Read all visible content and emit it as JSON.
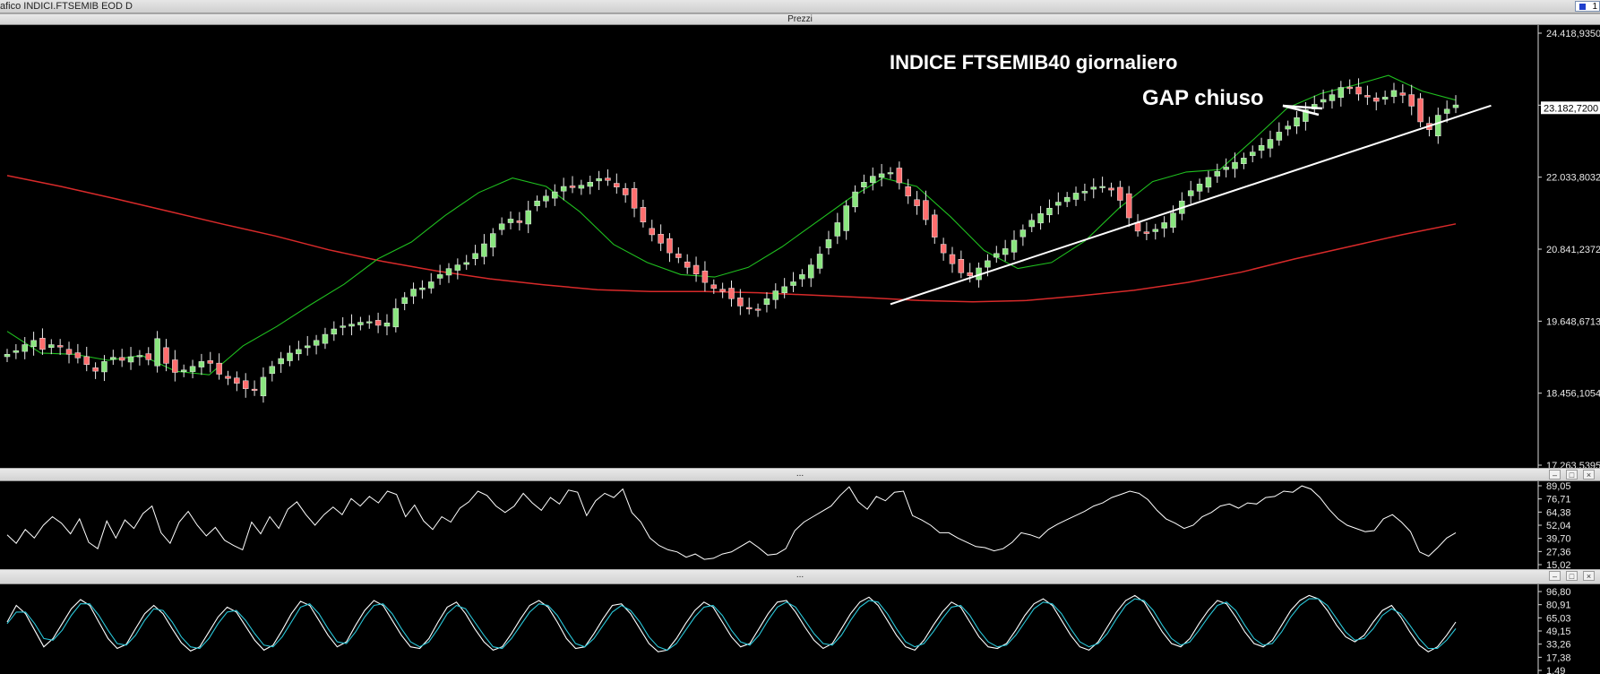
{
  "window": {
    "title": "afico INDICI.FTSEMIB EOD D",
    "badge": "1",
    "pane_main_label": "Prezzi",
    "pane_osc_label": "..."
  },
  "annotations": {
    "title": "INDICE FTSEMIB40 giornaliero",
    "gap": "GAP chiuso"
  },
  "colors": {
    "background": "#000000",
    "bull_candle": "#8ae67f",
    "bear_candle": "#ff6e6e",
    "ma_short": "#1fbf1f",
    "ma_long": "#d82a2a",
    "trendline": "#ffffff",
    "oscillator": "#ffffff",
    "stoch_k": "#ffffff",
    "stoch_d": "#29c6d8"
  },
  "chart_data": [
    {
      "type": "candlestick",
      "title": "INDICE FTSEMIB40 giornaliero",
      "y_ticks": [
        "24.418,9350",
        "23.182,7200",
        "22.033,8032",
        "20.841,2372",
        "19.648,6713",
        "18.456,1054",
        "17.263,5395"
      ],
      "ylim": [
        17263.5395,
        24418.935
      ],
      "current_value": "23.182,7200",
      "trendline": {
        "from": [
          100,
          19930
        ],
        "to": [
          168,
          23220
        ]
      },
      "ma_long_values": [
        22060,
        21880,
        21680,
        21470,
        21260,
        21060,
        20830,
        20640,
        20480,
        20350,
        20250,
        20170,
        20140,
        20140,
        20120,
        20080,
        20040,
        19990,
        19970,
        19990,
        20070,
        20160,
        20290,
        20460,
        20680,
        20880,
        21080,
        21260
      ],
      "ma_short_values": [
        19480,
        19120,
        19100,
        19000,
        19080,
        18820,
        18760,
        19240,
        19560,
        19920,
        20260,
        20680,
        20960,
        21400,
        21780,
        22020,
        21880,
        21460,
        20920,
        20620,
        20420,
        20380,
        20540,
        20880,
        21280,
        21680,
        22020,
        21880,
        21380,
        20820,
        20520,
        20620,
        20980,
        21520,
        21960,
        22120,
        22160,
        22660,
        23180,
        23420,
        23560,
        23720,
        23460,
        23310
      ],
      "closes": [
        19100,
        19160,
        19260,
        19330,
        19180,
        19260,
        19220,
        19100,
        19040,
        18930,
        18820,
        18980,
        19050,
        19000,
        19060,
        19080,
        19010,
        19360,
        18950,
        18800,
        18840,
        18900,
        18980,
        18950,
        18770,
        18700,
        18620,
        18530,
        18500,
        18720,
        18900,
        19030,
        19120,
        19180,
        19240,
        19330,
        19430,
        19520,
        19570,
        19600,
        19630,
        19640,
        19580,
        19620,
        19860,
        20040,
        20180,
        20200,
        20300,
        20420,
        20520,
        20580,
        20620,
        20770,
        20930,
        21100,
        21260,
        21340,
        21280,
        21480,
        21640,
        21720,
        21790,
        21880,
        21860,
        21900,
        21950,
        22010,
        21980,
        21870,
        21740,
        21520,
        21290,
        21080,
        20940,
        20780,
        20700,
        20540,
        20430,
        20290,
        20190,
        20140,
        20020,
        19900,
        19850,
        19830,
        20020,
        20150,
        20220,
        20300,
        20420,
        20580,
        20760,
        21000,
        21280,
        21560,
        21790,
        21950,
        22050,
        22090,
        22110,
        21940,
        21720,
        21560,
        21330,
        21040,
        20780,
        20600,
        20450,
        20400,
        20530,
        20650,
        20770,
        20850,
        20990,
        21160,
        21320,
        21430,
        21520,
        21620,
        21700,
        21770,
        21800,
        21870,
        21880,
        21820,
        21650,
        21360,
        21140,
        21100,
        21170,
        21280,
        21440,
        21640,
        21810,
        21920,
        22030,
        22130,
        22200,
        22280,
        22350,
        22450,
        22560,
        22660,
        22780,
        22880,
        23020,
        23150,
        23240,
        23320,
        23400,
        23520,
        23500,
        23410,
        23360,
        23290,
        23360,
        23470,
        23390,
        23210,
        22950,
        22820,
        23060,
        23160,
        23230
      ]
    },
    {
      "type": "line",
      "name": "",
      "y_ticks": [
        "89,05",
        "76,71",
        "64,38",
        "52,04",
        "39,70",
        "27,36",
        "15,02"
      ],
      "ylim": [
        15.02,
        89.05
      ],
      "values": [
        43,
        35,
        48,
        40,
        52,
        60,
        54,
        44,
        58,
        36,
        30,
        56,
        40,
        57,
        49,
        63,
        70,
        45,
        35,
        55,
        65,
        52,
        42,
        50,
        38,
        33,
        29,
        55,
        44,
        60,
        49,
        67,
        74,
        62,
        52,
        62,
        69,
        62,
        77,
        70,
        79,
        73,
        84,
        81,
        60,
        71,
        56,
        48,
        60,
        55,
        68,
        74,
        84,
        80,
        70,
        64,
        70,
        82,
        73,
        66,
        78,
        72,
        85,
        83,
        61,
        75,
        82,
        78,
        86,
        64,
        55,
        40,
        33,
        29,
        27,
        22,
        25,
        20,
        21,
        25,
        27,
        32,
        37,
        31,
        24,
        25,
        30,
        47,
        55,
        60,
        65,
        70,
        80,
        88,
        74,
        67,
        79,
        75,
        83,
        84,
        61,
        57,
        52,
        45,
        45,
        40,
        36,
        32,
        31,
        28,
        30,
        36,
        45,
        43,
        40,
        48,
        53,
        57,
        61,
        65,
        70,
        73,
        78,
        81,
        84,
        82,
        76,
        66,
        58,
        54,
        49,
        52,
        60,
        64,
        70,
        72,
        68,
        73,
        72,
        78,
        79,
        84,
        83,
        89,
        86,
        78,
        67,
        58,
        52,
        49,
        46,
        47,
        58,
        62,
        55,
        46,
        27,
        23,
        31,
        40,
        45
      ]
    },
    {
      "type": "line",
      "name": "",
      "y_ticks": [
        "96,80",
        "80,91",
        "65,03",
        "49,15",
        "33,26",
        "17,38",
        "1,49"
      ],
      "ylim": [
        1.49,
        96.8
      ],
      "series": [
        {
          "values": [
            60,
            80,
            70,
            50,
            30,
            40,
            58,
            76,
            87,
            80,
            60,
            40,
            28,
            33,
            52,
            70,
            80,
            70,
            52,
            35,
            25,
            30,
            48,
            66,
            78,
            72,
            55,
            38,
            26,
            32,
            50,
            70,
            85,
            80,
            62,
            44,
            30,
            36,
            56,
            74,
            86,
            80,
            62,
            44,
            30,
            28,
            40,
            60,
            78,
            84,
            70,
            52,
            36,
            26,
            30,
            46,
            64,
            80,
            86,
            78,
            60,
            40,
            28,
            30,
            46,
            64,
            80,
            82,
            70,
            52,
            34,
            24,
            26,
            40,
            58,
            74,
            84,
            78,
            60,
            42,
            30,
            34,
            52,
            70,
            84,
            86,
            72,
            54,
            38,
            28,
            34,
            52,
            70,
            84,
            90,
            80,
            62,
            44,
            30,
            26,
            38,
            56,
            72,
            84,
            78,
            60,
            42,
            30,
            28,
            34,
            50,
            68,
            82,
            88,
            80,
            62,
            44,
            30,
            26,
            36,
            54,
            72,
            86,
            92,
            84,
            66,
            48,
            34,
            30,
            40,
            58,
            74,
            86,
            82,
            66,
            48,
            34,
            30,
            38,
            56,
            74,
            86,
            92,
            88,
            74,
            56,
            42,
            36,
            44,
            60,
            74,
            80,
            66,
            48,
            32,
            24,
            30,
            44,
            60
          ]
        },
        {
          "values": [
            58,
            72,
            72,
            58,
            40,
            38,
            50,
            68,
            82,
            82,
            68,
            50,
            34,
            32,
            44,
            62,
            76,
            74,
            60,
            42,
            30,
            28,
            40,
            58,
            72,
            74,
            62,
            46,
            32,
            30,
            42,
            60,
            78,
            82,
            70,
            52,
            36,
            34,
            48,
            66,
            80,
            82,
            70,
            52,
            36,
            30,
            36,
            52,
            70,
            80,
            76,
            60,
            44,
            30,
            28,
            40,
            56,
            72,
            82,
            80,
            68,
            50,
            34,
            30,
            40,
            56,
            72,
            80,
            74,
            60,
            42,
            30,
            26,
            34,
            50,
            66,
            78,
            80,
            68,
            50,
            36,
            32,
            44,
            62,
            78,
            84,
            78,
            62,
            46,
            34,
            32,
            44,
            62,
            78,
            86,
            84,
            70,
            52,
            36,
            30,
            34,
            48,
            64,
            78,
            80,
            68,
            50,
            36,
            30,
            32,
            44,
            60,
            76,
            84,
            82,
            70,
            52,
            36,
            30,
            34,
            46,
            64,
            80,
            88,
            86,
            74,
            56,
            40,
            32,
            36,
            50,
            66,
            80,
            84,
            74,
            56,
            40,
            32,
            34,
            48,
            66,
            80,
            88,
            88,
            80,
            64,
            48,
            38,
            40,
            52,
            68,
            76,
            70,
            56,
            40,
            28,
            28,
            38,
            52
          ]
        }
      ]
    }
  ]
}
